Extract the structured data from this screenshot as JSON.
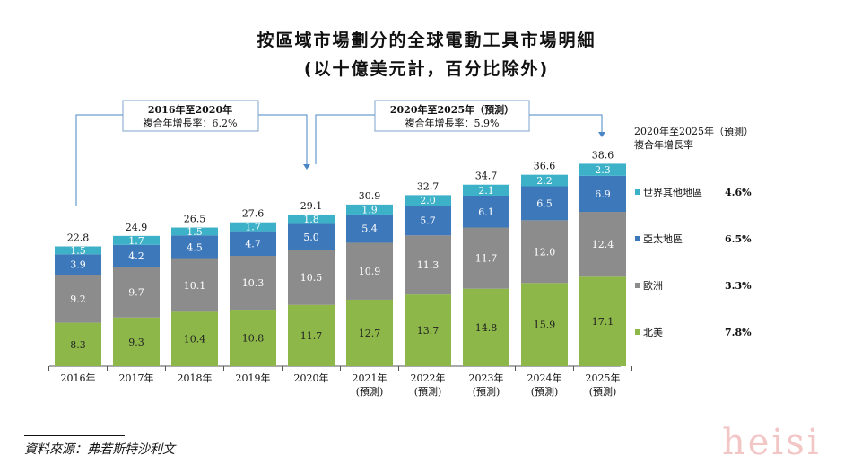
{
  "title": "按區域市場劃分的全球電動工具市場明細",
  "subtitle": "(以十億美元計，百分比除外)",
  "source": "資料來源：弗若斯特沙利文",
  "watermark": "heisi",
  "chart_data": {
    "type": "bar",
    "stacked": true,
    "categories": [
      "2016年",
      "2017年",
      "2018年",
      "2019年",
      "2020年",
      "2021年\n(預測)",
      "2022年\n(預測)",
      "2023年\n(預測)",
      "2024年\n(預測)",
      "2025年\n(預測)"
    ],
    "series": [
      {
        "name": "北美",
        "color": "#8db849",
        "values": [
          8.3,
          9.3,
          10.4,
          10.8,
          11.7,
          12.7,
          13.7,
          14.8,
          15.9,
          17.1
        ]
      },
      {
        "name": "歐洲",
        "color": "#8c8c8c",
        "values": [
          9.2,
          9.7,
          10.1,
          10.3,
          10.5,
          10.9,
          11.3,
          11.7,
          12.0,
          12.4
        ]
      },
      {
        "name": "亞太地區",
        "color": "#3d78bb",
        "values": [
          3.9,
          4.2,
          4.5,
          4.7,
          5.0,
          5.4,
          5.7,
          6.1,
          6.5,
          6.9
        ]
      },
      {
        "name": "世界其他地區",
        "color": "#3cb1c8",
        "values": [
          1.5,
          1.7,
          1.5,
          1.7,
          1.8,
          1.9,
          2.0,
          2.1,
          2.2,
          2.3
        ]
      }
    ],
    "totals": [
      22.8,
      24.9,
      26.5,
      27.6,
      29.1,
      30.9,
      32.7,
      34.7,
      36.6,
      38.6
    ],
    "ylim": [
      0,
      40
    ],
    "annotations": [
      {
        "line1": "2016年至2020年",
        "line2": "複合年增長率：6.2%"
      },
      {
        "line1": "2020年至2025年（預測）",
        "line2": "複合年增長率：5.9%"
      }
    ],
    "legend": {
      "title1": "2020年至2025年（預測）",
      "title2": "複合年增長率",
      "entries": [
        {
          "name": "世界其他地區",
          "cagr": "4.6%"
        },
        {
          "name": "亞太地區",
          "cagr": "6.5%"
        },
        {
          "name": "歐洲",
          "cagr": "3.3%"
        },
        {
          "name": "北美",
          "cagr": "7.8%"
        }
      ],
      "placement": "right"
    }
  }
}
